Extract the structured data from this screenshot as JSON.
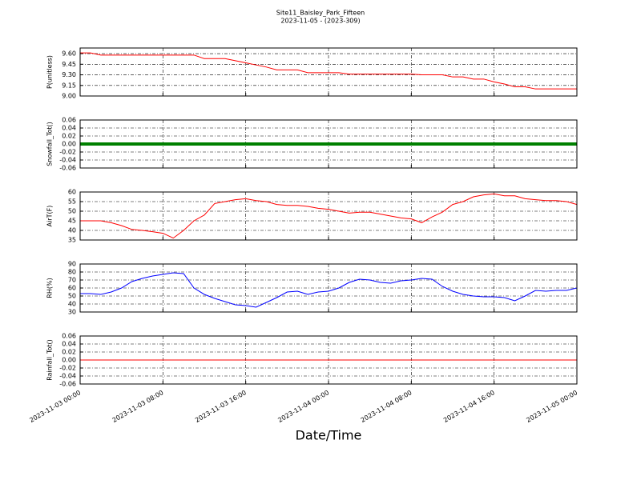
{
  "title": "Site11_Baisley_Park_Fifteen",
  "subtitle": "2023-11-05 - (2023-309)",
  "x_label": "Date/Time",
  "xlim": [
    "2023-11-03 00:00",
    "2023-11-05 00:00"
  ],
  "xticks": [
    "2023-11-03 00:00",
    "2023-11-03 08:00",
    "2023-11-03 16:00",
    "2023-11-04 00:00",
    "2023-11-04 08:00",
    "2023-11-04 16:00",
    "2023-11-05 00:00"
  ],
  "x": [
    "2023-11-03 00:00",
    "2023-11-03 01:00",
    "2023-11-03 02:00",
    "2023-11-03 03:00",
    "2023-11-03 04:00",
    "2023-11-03 05:00",
    "2023-11-03 06:00",
    "2023-11-03 07:00",
    "2023-11-03 08:00",
    "2023-11-03 09:00",
    "2023-11-03 10:00",
    "2023-11-03 11:00",
    "2023-11-03 12:00",
    "2023-11-03 13:00",
    "2023-11-03 14:00",
    "2023-11-03 15:00",
    "2023-11-03 16:00",
    "2023-11-03 17:00",
    "2023-11-03 18:00",
    "2023-11-03 19:00",
    "2023-11-03 20:00",
    "2023-11-03 21:00",
    "2023-11-03 22:00",
    "2023-11-03 23:00",
    "2023-11-04 00:00",
    "2023-11-04 01:00",
    "2023-11-04 02:00",
    "2023-11-04 03:00",
    "2023-11-04 04:00",
    "2023-11-04 05:00",
    "2023-11-04 06:00",
    "2023-11-04 07:00",
    "2023-11-04 08:00",
    "2023-11-04 09:00",
    "2023-11-04 10:00",
    "2023-11-04 11:00",
    "2023-11-04 12:00",
    "2023-11-04 13:00",
    "2023-11-04 14:00",
    "2023-11-04 15:00",
    "2023-11-04 16:00",
    "2023-11-04 17:00",
    "2023-11-04 18:00",
    "2023-11-04 19:00",
    "2023-11-04 20:00",
    "2023-11-04 21:00",
    "2023-11-04 22:00",
    "2023-11-04 23:00",
    "2023-11-05 00:00"
  ],
  "chart_data": [
    {
      "type": "line",
      "y_label": "P(unitless)",
      "color": "#ff0000",
      "grid": true,
      "ylim": [
        9.0,
        9.68
      ],
      "yticks": [
        {
          "value": 9.0,
          "label": "9.00"
        },
        9.15,
        {
          "value": 9.3,
          "label": "9.30"
        },
        9.45,
        {
          "value": 9.6,
          "label": "9.60"
        }
      ],
      "values": [
        9.61,
        9.61,
        9.58,
        9.58,
        9.58,
        9.58,
        9.58,
        9.58,
        9.58,
        9.58,
        9.58,
        9.58,
        9.53,
        9.53,
        9.53,
        9.5,
        9.47,
        9.44,
        9.41,
        9.37,
        9.37,
        9.37,
        9.33,
        9.33,
        9.33,
        9.33,
        9.31,
        9.31,
        9.31,
        9.31,
        9.31,
        9.31,
        9.31,
        9.3,
        9.3,
        9.3,
        9.27,
        9.27,
        9.24,
        9.24,
        9.2,
        9.17,
        9.13,
        9.13,
        9.1,
        9.1,
        9.1,
        9.1,
        9.1
      ]
    },
    {
      "type": "line",
      "y_label": "Snowfall_Tot()",
      "color": "#008000",
      "linewidth": 4,
      "grid": true,
      "ylim": [
        -0.06,
        0.06
      ],
      "yticks": [
        -0.06,
        -0.04,
        -0.02,
        {
          "value": 0,
          "label": "0.00"
        },
        0.02,
        0.04,
        0.06
      ],
      "values": [
        0,
        0,
        0,
        0,
        0,
        0,
        0,
        0,
        0,
        0,
        0,
        0,
        0,
        0,
        0,
        0,
        0,
        0,
        0,
        0,
        0,
        0,
        0,
        0,
        0,
        0,
        0,
        0,
        0,
        0,
        0,
        0,
        0,
        0,
        0,
        0,
        0,
        0,
        0,
        0,
        0,
        0,
        0,
        0,
        0,
        0,
        0,
        0,
        0
      ]
    },
    {
      "type": "line",
      "y_label": "AirT(F)",
      "color": "#ff0000",
      "grid": true,
      "ylim": [
        35,
        60
      ],
      "yticks": [
        35,
        40,
        45,
        50,
        55,
        60
      ],
      "values": [
        45,
        45,
        45,
        44,
        42.5,
        40.5,
        40,
        39.3,
        38.5,
        36,
        40,
        45,
        48,
        54,
        55,
        56,
        56.5,
        55.5,
        55,
        53.5,
        53,
        53,
        52.5,
        51.5,
        51,
        50,
        49,
        49.5,
        49.5,
        48.5,
        47.5,
        46.5,
        46,
        44,
        47,
        49.5,
        53.5,
        55,
        57.5,
        58.5,
        59,
        58,
        58,
        56.5,
        56,
        55.5,
        55.5,
        55,
        53.5
      ]
    },
    {
      "type": "line",
      "y_label": "RH(%)",
      "color": "#0000ff",
      "grid": true,
      "ylim": [
        30,
        90
      ],
      "yticks": [
        30,
        40,
        50,
        60,
        70,
        80,
        90
      ],
      "values": [
        53,
        53,
        52,
        55,
        60,
        68,
        72,
        75,
        77,
        79,
        78,
        60,
        52,
        47,
        43,
        39,
        38,
        36,
        42,
        48,
        55,
        56,
        52,
        55,
        56,
        60,
        67,
        71,
        70,
        67,
        66,
        69,
        70,
        72,
        71,
        62,
        56,
        52,
        50,
        49,
        49,
        48,
        44,
        50,
        57,
        56,
        57,
        57,
        60
      ]
    },
    {
      "type": "line",
      "y_label": "Rainfall_Tot()",
      "color": "#ff0000",
      "grid": true,
      "ylim": [
        -0.06,
        0.06
      ],
      "yticks": [
        -0.06,
        -0.04,
        -0.02,
        {
          "value": 0,
          "label": "0.00"
        },
        0.02,
        0.04,
        0.06
      ],
      "values": [
        0,
        0,
        0,
        0,
        0,
        0,
        0,
        0,
        0,
        0,
        0,
        0,
        0,
        0,
        0,
        0,
        0,
        0,
        0,
        0,
        0,
        0,
        0,
        0,
        0,
        0,
        0,
        0,
        0,
        0,
        0,
        0,
        0,
        0,
        0,
        0,
        0,
        0,
        0,
        0,
        0,
        0,
        0,
        0,
        0,
        0,
        0,
        0,
        0
      ]
    }
  ]
}
